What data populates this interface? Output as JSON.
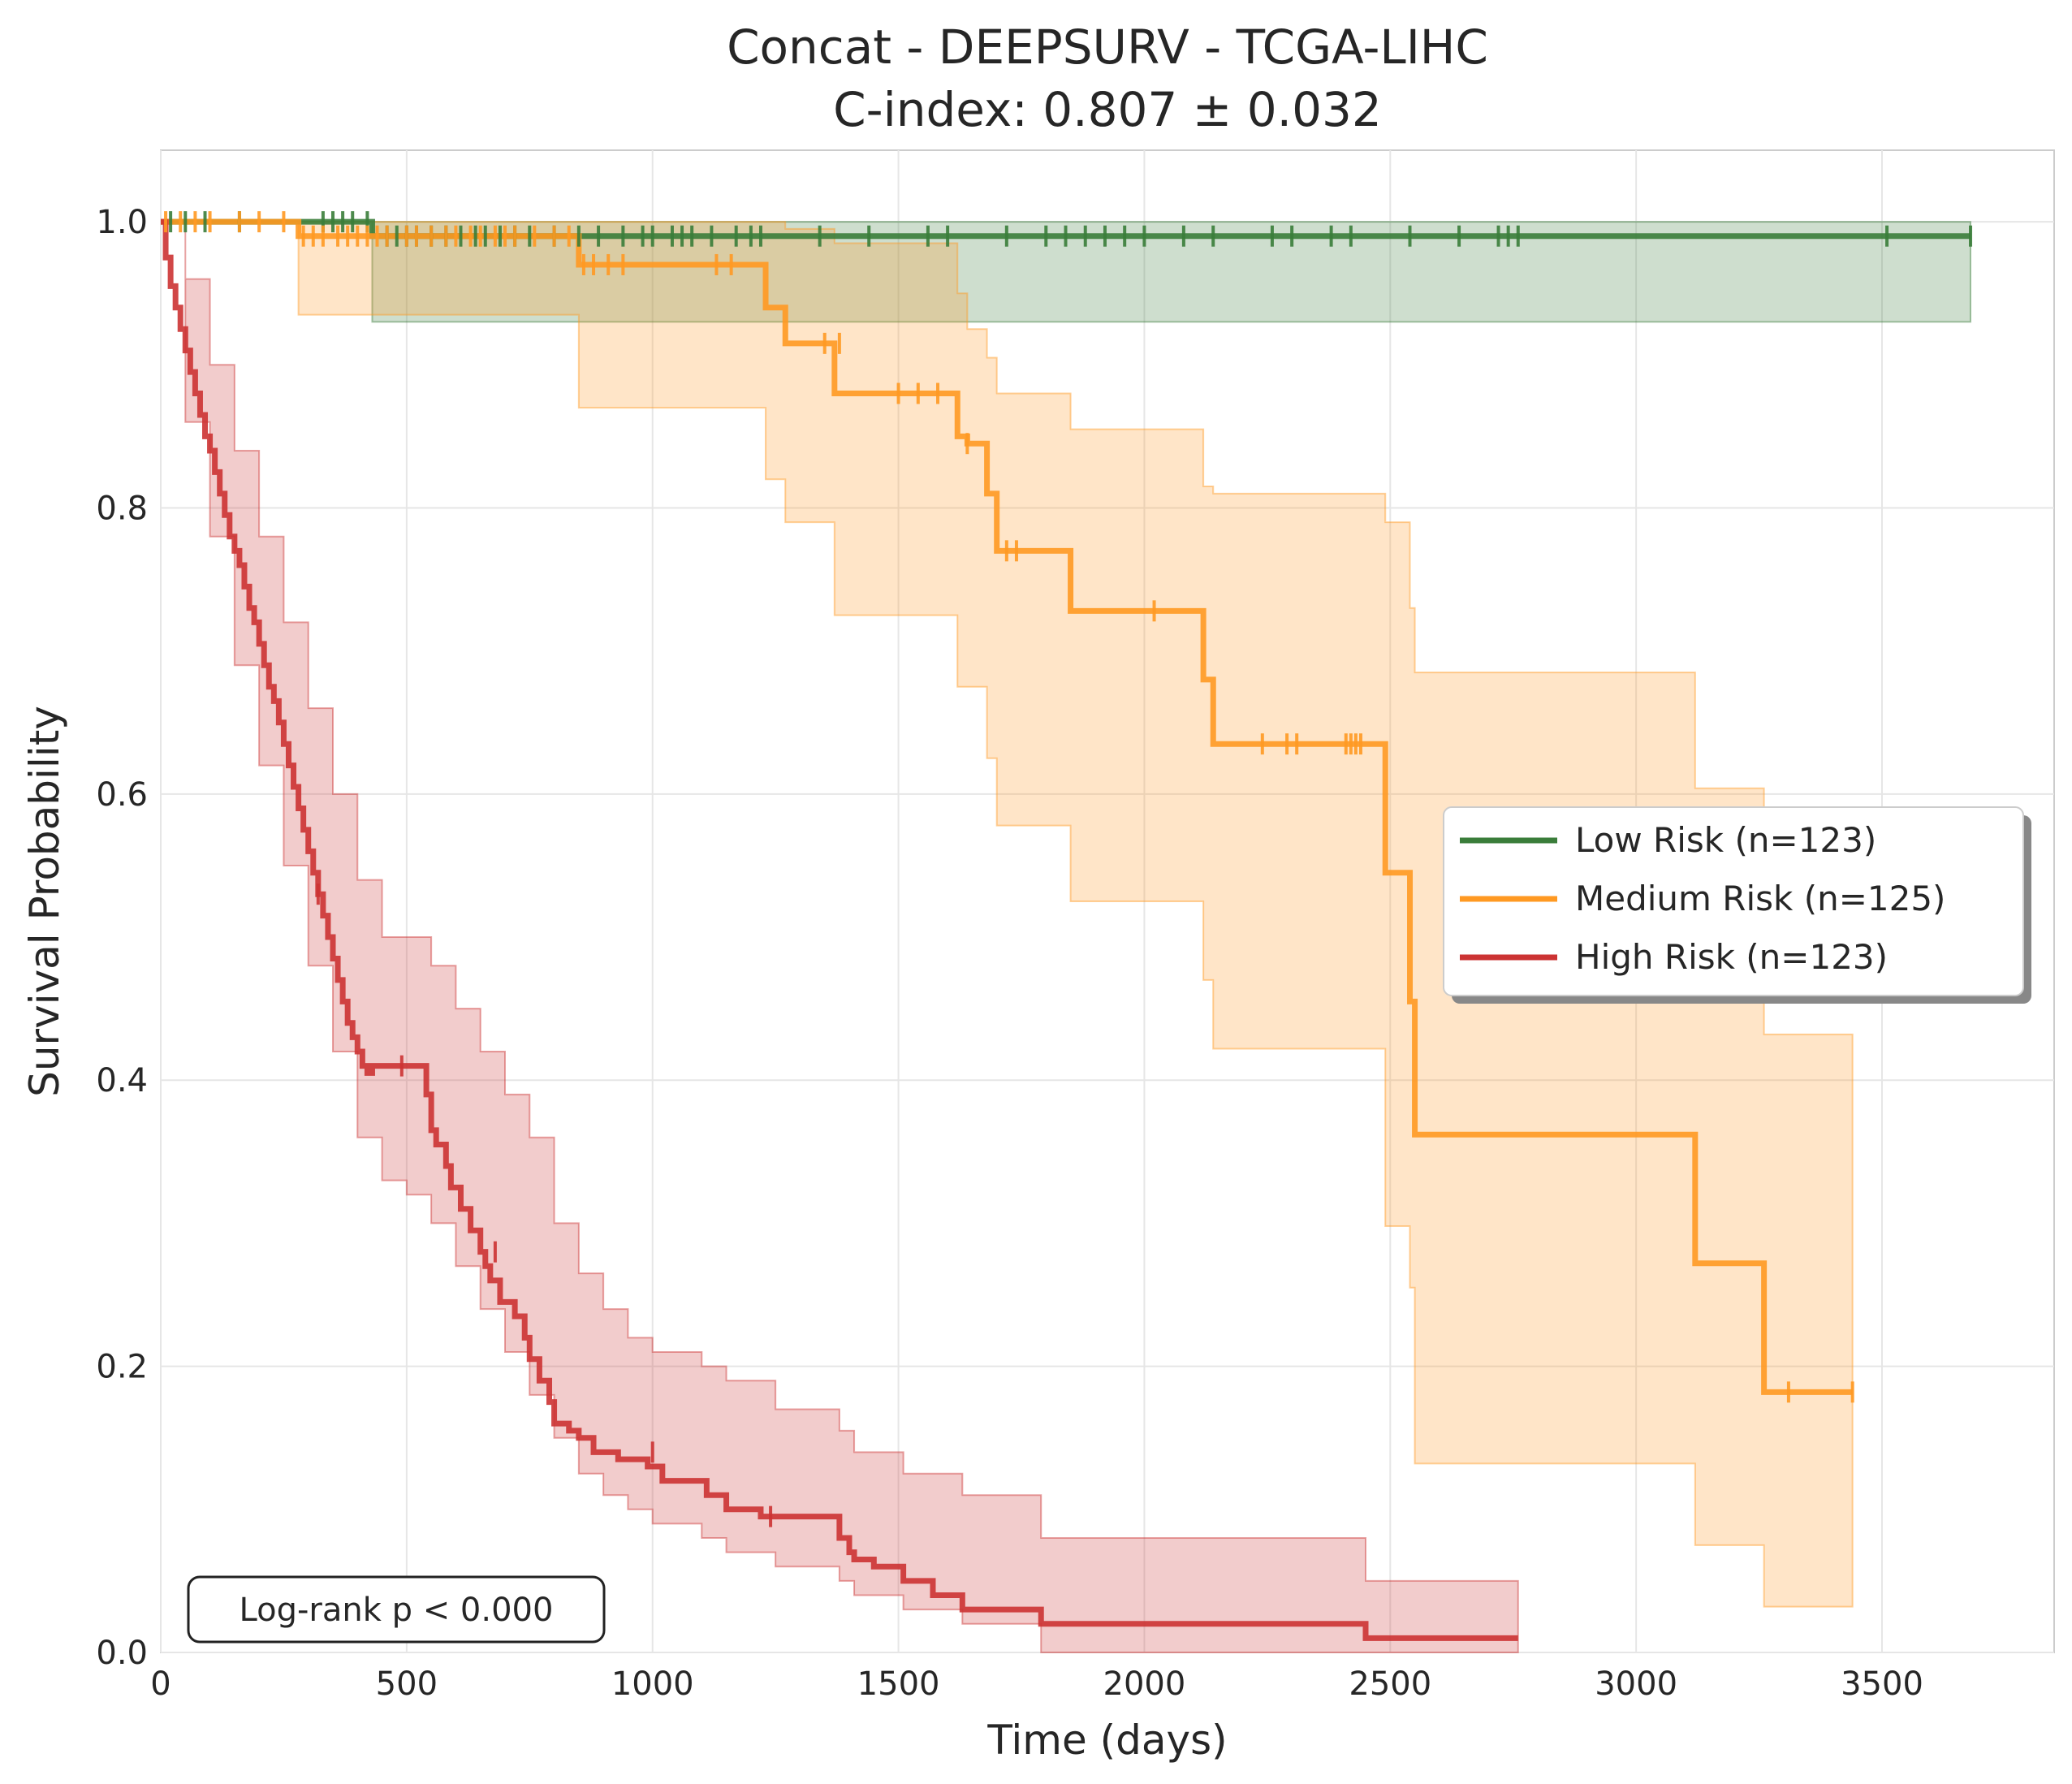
{
  "chart_data": {
    "type": "line",
    "title": "Concat - DEEPSURV - TCGA-LIHC",
    "subtitle": "C-index: 0.807 ± 0.032",
    "xlabel": "Time (days)",
    "ylabel": "Survival Probability",
    "xlim": [
      0,
      3850
    ],
    "ylim": [
      0,
      1.05
    ],
    "xticks": [
      0,
      500,
      1000,
      1500,
      2000,
      2500,
      3000,
      3500
    ],
    "xtick_labels": [
      "0",
      "500",
      "1000",
      "1500",
      "2000",
      "2500",
      "3000",
      "3500"
    ],
    "yticks": [
      0,
      0.2,
      0.4,
      0.6,
      0.8,
      1.0
    ],
    "ytick_labels": [
      "0.0",
      "0.2",
      "0.4",
      "0.6",
      "0.8",
      "1.0"
    ],
    "grid": true,
    "legend_position": "center-right",
    "annotation": "Log-rank p < 0.000",
    "series": [
      {
        "name": "Low Risk (n=123)",
        "color": "#3a7d3a",
        "x": [
          0,
          430,
          3680
        ],
        "y": [
          1.0,
          0.99,
          0.99
        ],
        "ci_x": [
          0,
          430,
          1380,
          3680
        ],
        "ci_lower": [
          1.0,
          0.93,
          0.93,
          0.93
        ],
        "ci_upper": [
          1.0,
          1.0,
          1.0,
          1.0
        ],
        "censored_x": [
          20,
          50,
          90,
          160,
          330,
          350,
          370,
          390,
          420,
          460,
          480,
          500,
          520,
          550,
          580,
          610,
          640,
          660,
          690,
          720,
          750,
          800,
          850,
          890,
          940,
          980,
          1000,
          1040,
          1060,
          1080,
          1120,
          1170,
          1200,
          1220,
          1340,
          1440,
          1560,
          1600,
          1720,
          1800,
          1840,
          1880,
          1920,
          1960,
          2000,
          2080,
          2140,
          2260,
          2300,
          2380,
          2420,
          2540,
          2640,
          2720,
          2740,
          2760,
          3510,
          3680
        ],
        "censored_y": [
          1.0,
          1.0,
          1.0,
          1.0,
          1.0,
          1.0,
          1.0,
          1.0,
          1.0,
          0.99,
          0.99,
          0.99,
          0.99,
          0.99,
          0.99,
          0.99,
          0.99,
          0.99,
          0.99,
          0.99,
          0.99,
          0.99,
          0.99,
          0.99,
          0.99,
          0.99,
          0.99,
          0.99,
          0.99,
          0.99,
          0.99,
          0.99,
          0.99,
          0.99,
          0.99,
          0.99,
          0.99,
          0.99,
          0.99,
          0.99,
          0.99,
          0.99,
          0.99,
          0.99,
          0.99,
          0.99,
          0.99,
          0.99,
          0.99,
          0.99,
          0.99,
          0.99,
          0.99,
          0.99,
          0.99,
          0.99,
          0.99,
          0.99
        ]
      },
      {
        "name": "Medium Risk (n=125)",
        "color": "#ff9922",
        "x": [
          0,
          280,
          850,
          1230,
          1270,
          1370,
          1620,
          1640,
          1680,
          1700,
          1850,
          2120,
          2140,
          2490,
          2540,
          2550,
          3120,
          3260,
          3440
        ],
        "y": [
          1.0,
          0.99,
          0.97,
          0.94,
          0.915,
          0.88,
          0.85,
          0.845,
          0.81,
          0.77,
          0.728,
          0.68,
          0.635,
          0.545,
          0.455,
          0.362,
          0.272,
          0.182,
          0.182
        ],
        "ci_x": [
          0,
          280,
          850,
          1230,
          1270,
          1370,
          1620,
          1640,
          1680,
          1700,
          1850,
          2120,
          2140,
          2490,
          2540,
          2550,
          3120,
          3260,
          3440
        ],
        "ci_lower": [
          1.0,
          0.935,
          0.87,
          0.82,
          0.79,
          0.725,
          0.675,
          0.675,
          0.625,
          0.578,
          0.525,
          0.47,
          0.422,
          0.298,
          0.255,
          0.132,
          0.075,
          0.032,
          0.032
        ],
        "ci_upper": [
          1.0,
          1.0,
          1.0,
          1.0,
          0.995,
          0.985,
          0.95,
          0.925,
          0.905,
          0.88,
          0.855,
          0.815,
          0.81,
          0.79,
          0.73,
          0.685,
          0.604,
          0.432,
          0.432
        ],
        "censored_x": [
          10,
          40,
          70,
          100,
          160,
          200,
          250,
          290,
          310,
          330,
          360,
          380,
          400,
          420,
          440,
          460,
          500,
          520,
          550,
          580,
          600,
          630,
          650,
          680,
          700,
          720,
          760,
          800,
          830,
          860,
          880,
          910,
          940,
          1130,
          1160,
          1350,
          1380,
          1500,
          1540,
          1580,
          1640,
          1720,
          1740,
          2020,
          2240,
          2290,
          2310,
          2410,
          2420,
          2430,
          2440,
          3310,
          3440
        ],
        "censored_y": [
          1.0,
          1.0,
          1.0,
          1.0,
          1.0,
          1.0,
          1.0,
          0.99,
          0.99,
          0.99,
          0.99,
          0.99,
          0.99,
          0.99,
          0.99,
          0.99,
          0.99,
          0.99,
          0.99,
          0.99,
          0.99,
          0.99,
          0.99,
          0.99,
          0.99,
          0.99,
          0.99,
          0.99,
          0.99,
          0.97,
          0.97,
          0.97,
          0.97,
          0.97,
          0.97,
          0.915,
          0.915,
          0.88,
          0.88,
          0.88,
          0.845,
          0.77,
          0.77,
          0.728,
          0.635,
          0.635,
          0.635,
          0.635,
          0.635,
          0.635,
          0.635,
          0.182,
          0.182
        ]
      },
      {
        "name": "High Risk (n=123)",
        "color": "#cc3333",
        "x": [
          0,
          10,
          20,
          30,
          40,
          50,
          60,
          70,
          80,
          90,
          100,
          110,
          120,
          130,
          140,
          150,
          160,
          170,
          180,
          190,
          200,
          210,
          220,
          230,
          240,
          250,
          260,
          270,
          280,
          290,
          300,
          310,
          320,
          330,
          340,
          350,
          360,
          370,
          380,
          390,
          400,
          410,
          420,
          430,
          440,
          450,
          460,
          470,
          480,
          490,
          500,
          540,
          550,
          560,
          580,
          590,
          610,
          630,
          650,
          660,
          670,
          690,
          720,
          740,
          750,
          770,
          790,
          800,
          830,
          850,
          880,
          900,
          930,
          990,
          1020,
          1110,
          1150,
          1220,
          1380,
          1400,
          1410,
          1450,
          1510,
          1570,
          1630,
          1790,
          2450,
          2760
        ],
        "y": [
          1.0,
          0.975,
          0.955,
          0.94,
          0.925,
          0.91,
          0.895,
          0.88,
          0.865,
          0.85,
          0.84,
          0.825,
          0.81,
          0.795,
          0.78,
          0.77,
          0.76,
          0.745,
          0.73,
          0.72,
          0.705,
          0.69,
          0.675,
          0.665,
          0.65,
          0.635,
          0.62,
          0.605,
          0.59,
          0.575,
          0.56,
          0.545,
          0.53,
          0.515,
          0.5,
          0.485,
          0.47,
          0.455,
          0.44,
          0.43,
          0.42,
          0.41,
          0.405,
          0.41,
          0.41,
          0.41,
          0.41,
          0.41,
          0.41,
          0.41,
          0.41,
          0.39,
          0.365,
          0.355,
          0.34,
          0.325,
          0.31,
          0.295,
          0.28,
          0.27,
          0.26,
          0.245,
          0.235,
          0.22,
          0.205,
          0.19,
          0.175,
          0.16,
          0.155,
          0.15,
          0.14,
          0.14,
          0.135,
          0.13,
          0.12,
          0.11,
          0.1,
          0.095,
          0.08,
          0.07,
          0.065,
          0.06,
          0.05,
          0.04,
          0.03,
          0.02,
          0.01,
          0.01
        ],
        "ci_x": [
          0,
          50,
          100,
          150,
          200,
          250,
          300,
          350,
          400,
          450,
          500,
          550,
          600,
          650,
          700,
          750,
          800,
          850,
          900,
          950,
          1000,
          1100,
          1150,
          1250,
          1380,
          1410,
          1510,
          1630,
          1790,
          2450,
          2760
        ],
        "ci_lower": [
          1.0,
          0.86,
          0.78,
          0.69,
          0.62,
          0.55,
          0.48,
          0.42,
          0.36,
          0.33,
          0.32,
          0.3,
          0.27,
          0.24,
          0.21,
          0.18,
          0.15,
          0.125,
          0.11,
          0.1,
          0.09,
          0.08,
          0.07,
          0.06,
          0.05,
          0.04,
          0.03,
          0.02,
          0.0,
          0.0,
          0.0
        ],
        "ci_upper": [
          1.0,
          0.96,
          0.9,
          0.84,
          0.78,
          0.72,
          0.66,
          0.6,
          0.54,
          0.5,
          0.5,
          0.48,
          0.45,
          0.42,
          0.39,
          0.36,
          0.3,
          0.265,
          0.24,
          0.22,
          0.21,
          0.2,
          0.19,
          0.17,
          0.155,
          0.14,
          0.125,
          0.11,
          0.08,
          0.05,
          0.05
        ],
        "censored_x": [
          320,
          490,
          680,
          1000,
          1240
        ],
        "censored_y": [
          0.53,
          0.41,
          0.28,
          0.14,
          0.095
        ]
      }
    ]
  }
}
